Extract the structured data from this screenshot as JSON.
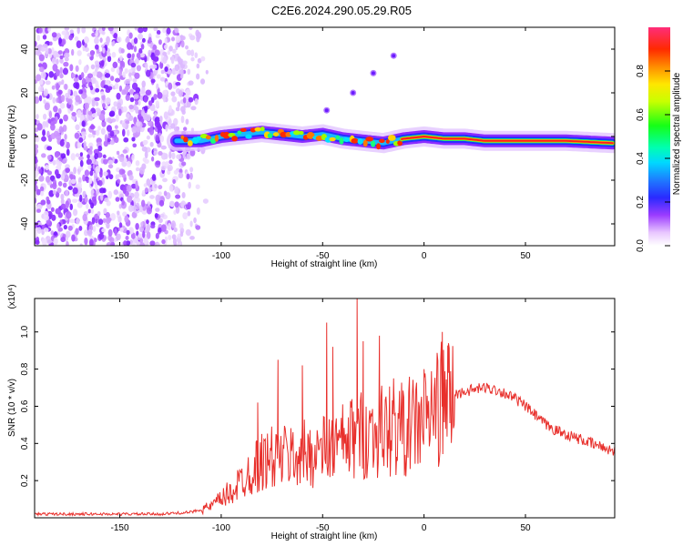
{
  "title": "C2E6.2024.290.05.29.R05",
  "chart_data": [
    {
      "type": "heatmap",
      "panel": "top",
      "xlabel": "Height of straight line (km)",
      "ylabel": "Frequency (Hz)",
      "xlim": [
        -192,
        94
      ],
      "ylim": [
        -50,
        50
      ],
      "xticks": [
        -150,
        -100,
        -50,
        0,
        50
      ],
      "yticks": [
        -40,
        -20,
        0,
        20,
        40
      ],
      "colorbar": {
        "label": "Normalized spectral amplitude",
        "range": [
          0,
          1
        ],
        "ticks": [
          0.0,
          0.2,
          0.4,
          0.6,
          0.8
        ]
      },
      "features": {
        "noise_region_x": [
          -192,
          -110
        ],
        "central_band": [
          {
            "x": -122,
            "y": -2
          },
          {
            "x": -110,
            "y": -2
          },
          {
            "x": -100,
            "y": 0
          },
          {
            "x": -90,
            "y": 1
          },
          {
            "x": -80,
            "y": 2
          },
          {
            "x": -70,
            "y": 1
          },
          {
            "x": -60,
            "y": 0
          },
          {
            "x": -50,
            "y": 1
          },
          {
            "x": -40,
            "y": -1
          },
          {
            "x": -30,
            "y": -2
          },
          {
            "x": -20,
            "y": -3
          },
          {
            "x": -10,
            "y": -1
          },
          {
            "x": 0,
            "y": 0
          },
          {
            "x": 10,
            "y": -1
          },
          {
            "x": 20,
            "y": -1
          },
          {
            "x": 30,
            "y": -2
          },
          {
            "x": 50,
            "y": -2
          },
          {
            "x": 70,
            "y": -2
          },
          {
            "x": 93,
            "y": -3
          }
        ],
        "harmonic_points": [
          {
            "x": -48,
            "y": 12
          },
          {
            "x": -35,
            "y": 20
          },
          {
            "x": -25,
            "y": 29
          },
          {
            "x": -15,
            "y": 37
          }
        ]
      }
    },
    {
      "type": "line",
      "panel": "bottom",
      "xlabel": "Height of straight line (km)",
      "ylabel": "SNR (10 * v/v)",
      "y_multiplier": "(x10⁴)",
      "xlim": [
        -192,
        94
      ],
      "ylim": [
        0,
        1.18
      ],
      "xticks": [
        -150,
        -100,
        -50,
        0,
        50
      ],
      "yticks": [
        0.2,
        0.4,
        0.6,
        0.8,
        1.0
      ],
      "series": [
        {
          "color": "#e8302c",
          "x": [
            -192,
            -170,
            -150,
            -130,
            -115,
            -105,
            -100,
            -95,
            -90,
            -85,
            -80,
            -75,
            -70,
            -65,
            -60,
            -55,
            -50,
            -45,
            -40,
            -35,
            -30,
            -25,
            -20,
            -15,
            -10,
            -5,
            0,
            5,
            10,
            15,
            20,
            25,
            30,
            35,
            40,
            45,
            50,
            55,
            60,
            65,
            70,
            75,
            80,
            85,
            94
          ],
          "y": [
            0.02,
            0.02,
            0.02,
            0.02,
            0.03,
            0.06,
            0.1,
            0.14,
            0.2,
            0.26,
            0.3,
            0.32,
            0.33,
            0.33,
            0.34,
            0.35,
            0.36,
            0.38,
            0.4,
            0.43,
            0.45,
            0.46,
            0.47,
            0.48,
            0.48,
            0.5,
            0.53,
            0.58,
            0.63,
            0.66,
            0.68,
            0.69,
            0.7,
            0.69,
            0.67,
            0.64,
            0.6,
            0.55,
            0.5,
            0.47,
            0.45,
            0.43,
            0.41,
            0.39,
            0.36
          ],
          "peaks": [
            {
              "x": -82,
              "y": 0.62
            },
            {
              "x": -72,
              "y": 0.85
            },
            {
              "x": -60,
              "y": 0.82
            },
            {
              "x": -48,
              "y": 1.05
            },
            {
              "x": -45,
              "y": 0.92
            },
            {
              "x": -33,
              "y": 1.18
            },
            {
              "x": -30,
              "y": 0.95
            },
            {
              "x": -22,
              "y": 0.98
            },
            {
              "x": -15,
              "y": 0.75
            },
            {
              "x": 0,
              "y": 0.8
            },
            {
              "x": 9,
              "y": 1.0
            },
            {
              "x": 12,
              "y": 0.78
            }
          ]
        }
      ]
    }
  ]
}
